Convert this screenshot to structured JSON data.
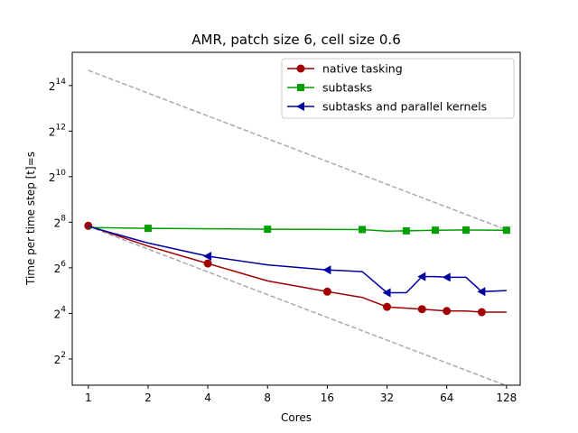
{
  "chart_data": {
    "type": "line",
    "title": "AMR, patch size 6, cell size 0.6",
    "xlabel": "Cores",
    "ylabel": "Time per time step [t]=s",
    "xscale": "log2",
    "yscale": "log2",
    "xlim": [
      0.83,
      150
    ],
    "ylim": [
      1.8,
      45000
    ],
    "xticks": [
      1,
      2,
      4,
      8,
      16,
      32,
      64,
      128
    ],
    "xtick_labels": [
      "1",
      "2",
      "4",
      "8",
      "16",
      "32",
      "64",
      "128"
    ],
    "yticks": [
      4,
      16,
      64,
      256,
      1024,
      4096,
      16384
    ],
    "ytick_labels": [
      {
        "base": "2",
        "exp": "2"
      },
      {
        "base": "2",
        "exp": "4"
      },
      {
        "base": "2",
        "exp": "6"
      },
      {
        "base": "2",
        "exp": "8"
      },
      {
        "base": "2",
        "exp": "10"
      },
      {
        "base": "2",
        "exp": "12"
      },
      {
        "base": "2",
        "exp": "14"
      }
    ],
    "grid": false,
    "legend_position": "top-right",
    "series": [
      {
        "name": "native tasking",
        "color": "#a00000",
        "marker": "circle",
        "x": [
          1,
          2,
          4,
          8,
          16,
          24,
          32,
          48,
          64,
          80,
          96,
          128
        ],
        "y": [
          230,
          124,
          73,
          43,
          31,
          26,
          19.5,
          18.2,
          17.2,
          17.2,
          16.6,
          16.6
        ],
        "marker_every": [
          0,
          2,
          4,
          6,
          7,
          8,
          10
        ]
      },
      {
        "name": " subtasks",
        "color": "#00a000",
        "marker": "square",
        "x": [
          1,
          2,
          8,
          24,
          32,
          40,
          56,
          80,
          128
        ],
        "y": [
          218,
          213,
          207,
          205,
          195,
          197,
          201,
          202,
          201
        ],
        "marker_every": [
          1,
          2,
          3,
          5,
          6,
          7,
          8
        ]
      },
      {
        "name": " subtasks and parallel kernels",
        "color": "#0000a0",
        "marker": "triangle-left",
        "x": [
          1,
          2,
          4,
          8,
          16,
          24,
          32,
          40,
          48,
          56,
          64,
          80,
          96,
          128
        ],
        "y": [
          226,
          136,
          91,
          70,
          60,
          57,
          30,
          30,
          49,
          49,
          48,
          48,
          31,
          32
        ],
        "marker_every": [
          2,
          4,
          6,
          8,
          10,
          12
        ]
      }
    ],
    "reference_lines": [
      {
        "name": "ideal-upper",
        "color": "#aaaaaa",
        "dash": true,
        "x": [
          1,
          128
        ],
        "y": [
          26000,
          203
        ]
      },
      {
        "name": "ideal-lower",
        "color": "#aaaaaa",
        "dash": true,
        "x": [
          1,
          128
        ],
        "y": [
          226,
          1.77
        ]
      }
    ]
  }
}
